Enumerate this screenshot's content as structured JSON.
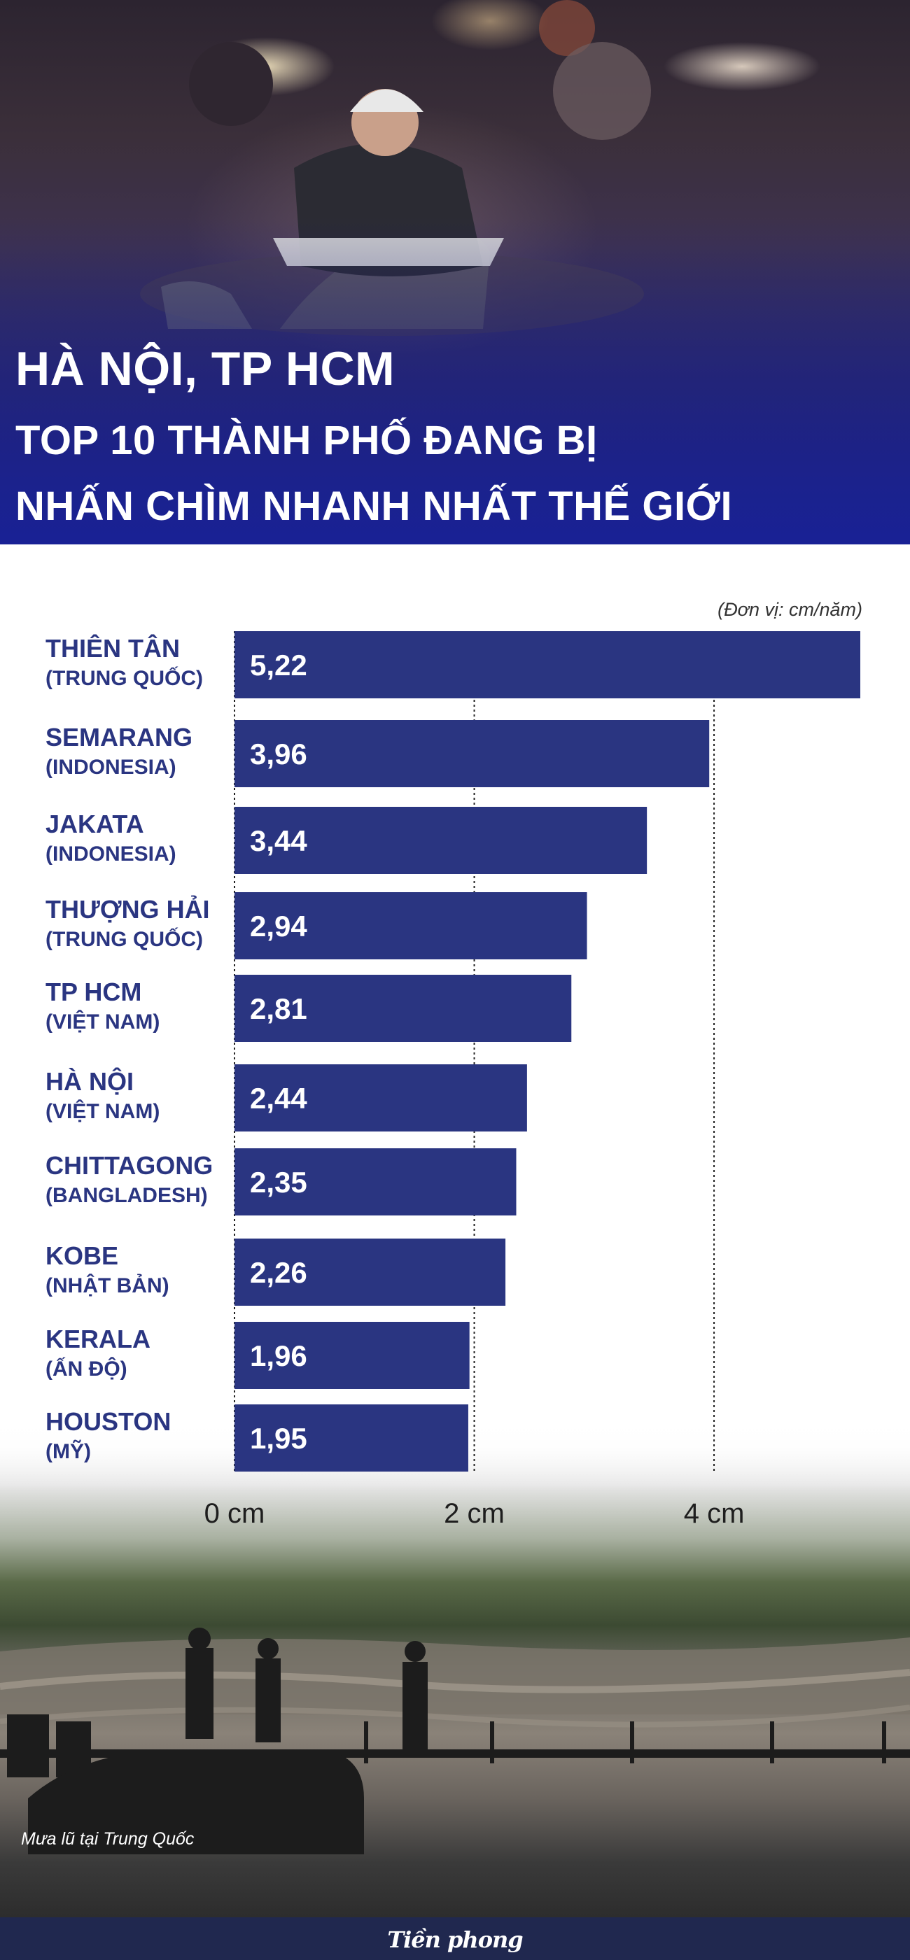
{
  "header": {
    "line1": "HÀ NỘI, TP HCM",
    "line2": "TOP 10 THÀNH PHỐ ĐANG BỊ",
    "line3": "NHẤN CHÌM NHANH NHẤT THẾ GIỚI"
  },
  "unit_note": "(Đơn vị: cm/năm)",
  "caption": "Mưa lũ tại Trung Quốc",
  "logo": "Tiền phong",
  "colors": {
    "bar": "#2a3581",
    "label": "#2a3581",
    "banner": "#1f2a8a",
    "footer": "#20284f"
  },
  "chart_data": {
    "type": "bar",
    "orientation": "horizontal",
    "title": "",
    "xlabel": "",
    "ylabel": "",
    "xlim": [
      0,
      5.22
    ],
    "grid": true,
    "categories": [
      {
        "name": "THIÊN TÂN",
        "country": "(TRUNG QUỐC)"
      },
      {
        "name": "SEMARANG",
        "country": "(INDONESIA)"
      },
      {
        "name": "JAKATA",
        "country": "(INDONESIA)"
      },
      {
        "name": "THƯỢNG HẢI",
        "country": "(TRUNG QUỐC)"
      },
      {
        "name": "TP HCM",
        "country": "(VIỆT NAM)"
      },
      {
        "name": "HÀ NỘI",
        "country": "(VIỆT NAM)"
      },
      {
        "name": "CHITTAGONG",
        "country": "(BANGLADESH)"
      },
      {
        "name": "KOBE",
        "country": "(NHẬT BẢN)"
      },
      {
        "name": "KERALA",
        "country": "(ẤN ĐỘ)"
      },
      {
        "name": "HOUSTON",
        "country": "(MỸ)"
      }
    ],
    "values": [
      5.22,
      3.96,
      3.44,
      2.94,
      2.81,
      2.44,
      2.35,
      2.26,
      1.96,
      1.95
    ],
    "value_labels": [
      "5,22",
      "3,96",
      "3,44",
      "2,94",
      "2,81",
      "2,44",
      "2,35",
      "2,26",
      "1,96",
      "1,95"
    ],
    "x_ticks": [
      {
        "value": 0,
        "label": "0 cm"
      },
      {
        "value": 2,
        "label": "2 cm"
      },
      {
        "value": 4,
        "label": "4 cm"
      }
    ]
  }
}
